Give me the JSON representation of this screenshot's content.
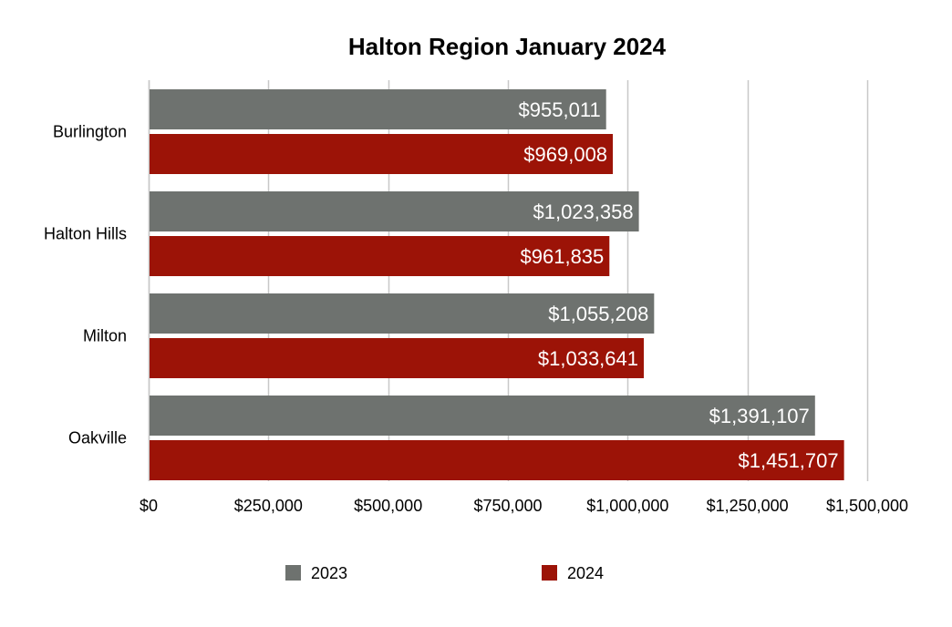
{
  "chart_data": {
    "type": "bar",
    "orientation": "horizontal",
    "title": "Halton Region January 2024",
    "categories": [
      "Burlington",
      "Halton Hills",
      "Milton",
      "Oakville"
    ],
    "series": [
      {
        "name": "2023",
        "color": "#6e726f",
        "values": [
          955011,
          1023358,
          1055208,
          1391107
        ],
        "labels": [
          "$955,011",
          "$1,023,358",
          "$1,055,208",
          "$1,391,107"
        ]
      },
      {
        "name": "2024",
        "color": "#9c1307",
        "values": [
          969008,
          961835,
          1033641,
          1451707
        ],
        "labels": [
          "$969,008",
          "$961,835",
          "$1,033,641",
          "$1,451,707"
        ]
      }
    ],
    "xlim": [
      0,
      1500000
    ],
    "x_ticks": [
      0,
      250000,
      500000,
      750000,
      1000000,
      1250000,
      1500000
    ],
    "x_tick_labels": [
      "$0",
      "$250,000",
      "$500,000",
      "$750,000",
      "$1,000,000",
      "$1,250,000",
      "$1,500,000"
    ],
    "grid": true,
    "legend_position": "bottom",
    "gridline_color": "#c8c8c8",
    "axis_color": "#c8c8c8"
  }
}
